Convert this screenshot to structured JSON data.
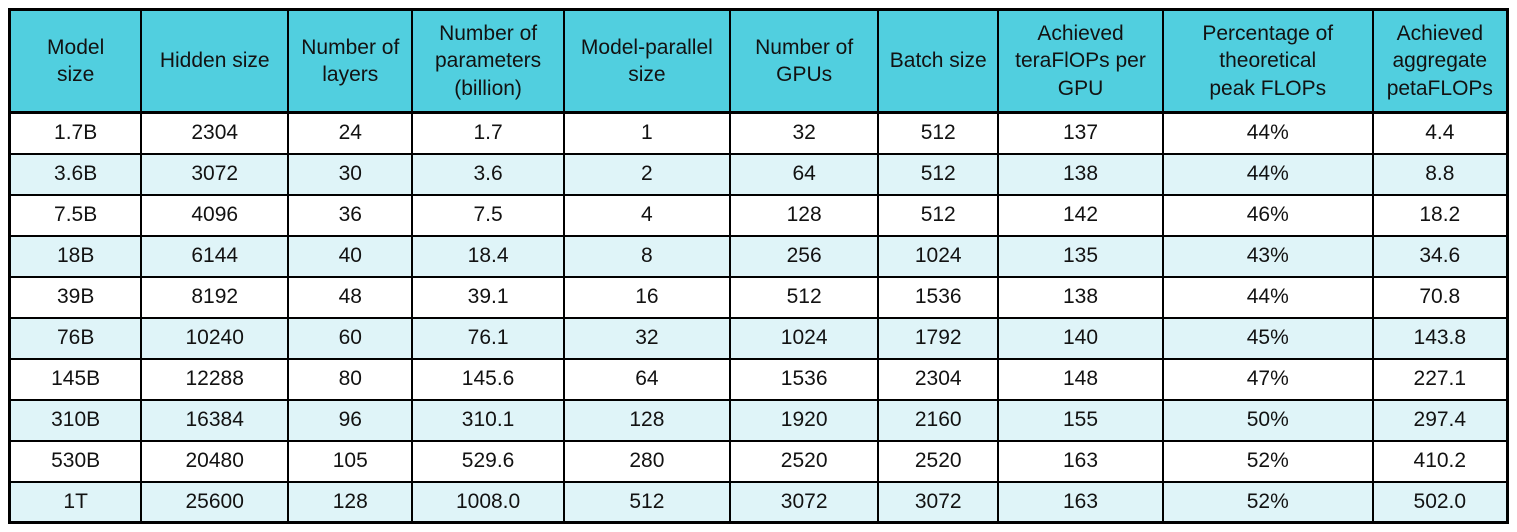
{
  "colors": {
    "header_bg": "#51CFDF",
    "alt_row_bg": "#DFF4F8",
    "row_bg": "#FFFFFF",
    "border": "#000000",
    "text": "#121212"
  },
  "table": {
    "headers": [
      "Model\nsize",
      "Hidden size",
      "Number of\nlayers",
      "Number of\nparameters\n(billion)",
      "Model-parallel\nsize",
      "Number of\nGPUs",
      "Batch size",
      "Achieved\nteraFlOPs per\nGPU",
      "Percentage of\ntheoretical\npeak FLOPs",
      "Achieved\naggregate\npetaFLOPs"
    ],
    "rows": [
      [
        "1.7B",
        "2304",
        "24",
        "1.7",
        "1",
        "32",
        "512",
        "137",
        "44%",
        "4.4"
      ],
      [
        "3.6B",
        "3072",
        "30",
        "3.6",
        "2",
        "64",
        "512",
        "138",
        "44%",
        "8.8"
      ],
      [
        "7.5B",
        "4096",
        "36",
        "7.5",
        "4",
        "128",
        "512",
        "142",
        "46%",
        "18.2"
      ],
      [
        "18B",
        "6144",
        "40",
        "18.4",
        "8",
        "256",
        "1024",
        "135",
        "43%",
        "34.6"
      ],
      [
        "39B",
        "8192",
        "48",
        "39.1",
        "16",
        "512",
        "1536",
        "138",
        "44%",
        "70.8"
      ],
      [
        "76B",
        "10240",
        "60",
        "76.1",
        "32",
        "1024",
        "1792",
        "140",
        "45%",
        "143.8"
      ],
      [
        "145B",
        "12288",
        "80",
        "145.6",
        "64",
        "1536",
        "2304",
        "148",
        "47%",
        "227.1"
      ],
      [
        "310B",
        "16384",
        "96",
        "310.1",
        "128",
        "1920",
        "2160",
        "155",
        "50%",
        "297.4"
      ],
      [
        "530B",
        "20480",
        "105",
        "529.6",
        "280",
        "2520",
        "2520",
        "163",
        "52%",
        "410.2"
      ],
      [
        "1T",
        "25600",
        "128",
        "1008.0",
        "512",
        "3072",
        "3072",
        "163",
        "52%",
        "502.0"
      ]
    ]
  }
}
